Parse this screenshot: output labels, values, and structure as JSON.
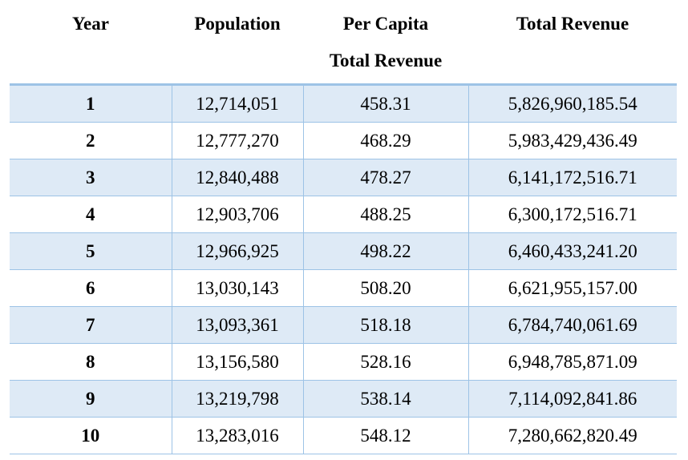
{
  "table": {
    "headers": {
      "year": "Year",
      "population": "Population",
      "per_capita_line1": "Per Capita",
      "per_capita_line2": "Total Revenue",
      "total_revenue": "Total Revenue"
    },
    "rows": [
      {
        "year": "1",
        "population": "12,714,051",
        "per_capita": "458.31",
        "total_revenue": "5,826,960,185.54"
      },
      {
        "year": "2",
        "population": "12,777,270",
        "per_capita": "468.29",
        "total_revenue": "5,983,429,436.49"
      },
      {
        "year": "3",
        "population": "12,840,488",
        "per_capita": "478.27",
        "total_revenue": "6,141,172,516.71"
      },
      {
        "year": "4",
        "population": "12,903,706",
        "per_capita": "488.25",
        "total_revenue": "6,300,172,516.71"
      },
      {
        "year": "5",
        "population": "12,966,925",
        "per_capita": "498.22",
        "total_revenue": "6,460,433,241.20"
      },
      {
        "year": "6",
        "population": "13,030,143",
        "per_capita": "508.20",
        "total_revenue": "6,621,955,157.00"
      },
      {
        "year": "7",
        "population": "13,093,361",
        "per_capita": "518.18",
        "total_revenue": "6,784,740,061.69"
      },
      {
        "year": "8",
        "population": "13,156,580",
        "per_capita": "528.16",
        "total_revenue": "6,948,785,871.09"
      },
      {
        "year": "9",
        "population": "13,219,798",
        "per_capita": "538.14",
        "total_revenue": "7,114,092,841.86"
      },
      {
        "year": "10",
        "population": "13,283,016",
        "per_capita": "548.12",
        "total_revenue": "7,280,662,820.49"
      }
    ],
    "colors": {
      "band": "#deeaf6",
      "rule": "#9dc3e6"
    }
  }
}
